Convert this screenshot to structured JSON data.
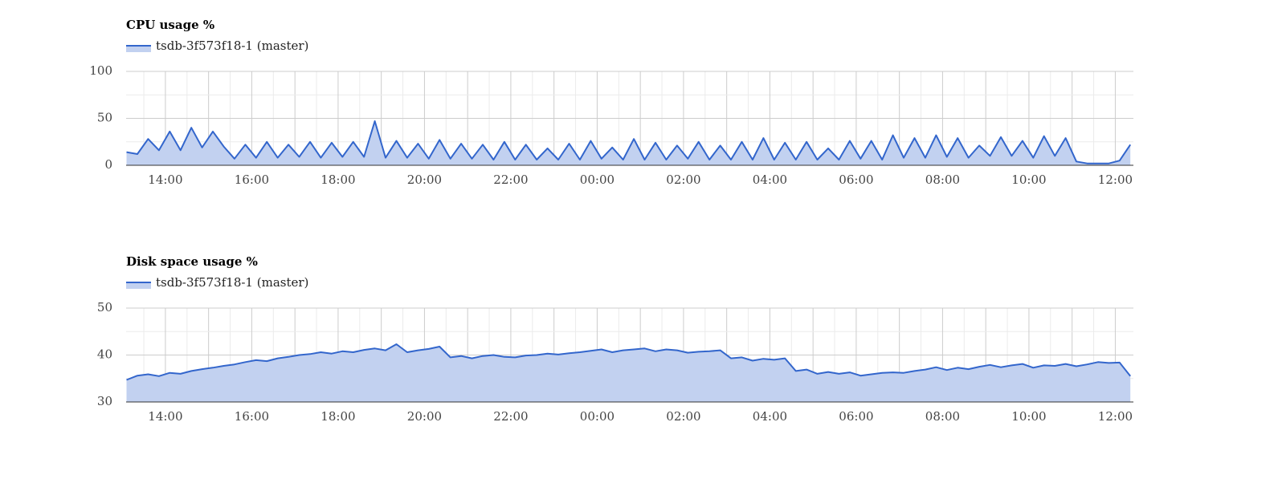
{
  "chart_data": [
    {
      "type": "area",
      "title": "CPU usage %",
      "x": [
        13.1,
        13.35,
        13.6,
        13.85,
        14.1,
        14.35,
        14.6,
        14.85,
        15.1,
        15.35,
        15.6,
        15.85,
        16.1,
        16.35,
        16.6,
        16.85,
        17.1,
        17.35,
        17.6,
        17.85,
        18.1,
        18.35,
        18.6,
        18.85,
        19.1,
        19.35,
        19.6,
        19.85,
        20.1,
        20.35,
        20.6,
        20.85,
        21.1,
        21.35,
        21.6,
        21.85,
        22.1,
        22.35,
        22.6,
        22.85,
        23.1,
        23.35,
        23.6,
        23.85,
        24.1,
        24.35,
        24.6,
        24.85,
        25.1,
        25.35,
        25.6,
        25.85,
        26.1,
        26.35,
        26.6,
        26.85,
        27.1,
        27.35,
        27.6,
        27.85,
        28.1,
        28.35,
        28.6,
        28.85,
        29.1,
        29.35,
        29.6,
        29.85,
        30.1,
        30.35,
        30.6,
        30.85,
        31.1,
        31.35,
        31.6,
        31.85,
        32.1,
        32.35,
        32.6,
        32.85,
        33.1,
        33.35,
        33.6,
        33.85,
        34.1,
        34.35,
        34.6,
        34.85,
        35.1,
        35.35,
        35.6,
        35.85,
        36.1,
        36.35
      ],
      "series": [
        {
          "name": "tsdb-3f573f18-1 (master)",
          "color": "#3366cc",
          "fill": "#c2d1f0",
          "values": [
            14,
            12,
            28,
            16,
            36,
            16,
            40,
            19,
            36,
            20,
            7,
            22,
            8,
            25,
            8,
            22,
            9,
            25,
            8,
            24,
            9,
            25,
            9,
            47,
            8,
            26,
            8,
            23,
            7,
            27,
            7,
            23,
            7,
            22,
            6,
            25,
            6,
            22,
            6,
            18,
            6,
            23,
            6,
            26,
            7,
            19,
            6,
            28,
            6,
            24,
            6,
            21,
            7,
            25,
            6,
            21,
            6,
            25,
            6,
            29,
            6,
            24,
            6,
            25,
            6,
            18,
            6,
            26,
            7,
            26,
            6,
            32,
            8,
            29,
            8,
            32,
            9,
            29,
            8,
            21,
            10,
            30,
            10,
            26,
            8,
            31,
            10,
            29,
            4,
            2,
            2,
            2,
            5,
            22
          ]
        }
      ],
      "xlim": [
        13.09,
        36.42
      ],
      "xticks": [
        {
          "value": 14,
          "label": "14:00"
        },
        {
          "value": 16,
          "label": "16:00"
        },
        {
          "value": 18,
          "label": "18:00"
        },
        {
          "value": 20,
          "label": "20:00"
        },
        {
          "value": 22,
          "label": "22:00"
        },
        {
          "value": 24,
          "label": "00:00"
        },
        {
          "value": 26,
          "label": "02:00"
        },
        {
          "value": 28,
          "label": "04:00"
        },
        {
          "value": 30,
          "label": "06:00"
        },
        {
          "value": 32,
          "label": "08:00"
        },
        {
          "value": 34,
          "label": "10:00"
        },
        {
          "value": 36,
          "label": "12:00"
        }
      ],
      "ylim": [
        0,
        100
      ],
      "yticks": [
        0,
        50,
        100
      ],
      "grid": true
    },
    {
      "type": "area",
      "title": "Disk space usage %",
      "x": [
        13.1,
        13.35,
        13.6,
        13.85,
        14.1,
        14.35,
        14.6,
        14.85,
        15.1,
        15.35,
        15.6,
        15.85,
        16.1,
        16.35,
        16.6,
        16.85,
        17.1,
        17.35,
        17.6,
        17.85,
        18.1,
        18.35,
        18.6,
        18.85,
        19.1,
        19.35,
        19.6,
        19.85,
        20.1,
        20.35,
        20.6,
        20.85,
        21.1,
        21.35,
        21.6,
        21.85,
        22.1,
        22.35,
        22.6,
        22.85,
        23.1,
        23.35,
        23.6,
        23.85,
        24.1,
        24.35,
        24.6,
        24.85,
        25.1,
        25.35,
        25.6,
        25.85,
        26.1,
        26.35,
        26.6,
        26.85,
        27.1,
        27.35,
        27.6,
        27.85,
        28.1,
        28.35,
        28.6,
        28.85,
        29.1,
        29.35,
        29.6,
        29.85,
        30.1,
        30.35,
        30.6,
        30.85,
        31.1,
        31.35,
        31.6,
        31.85,
        32.1,
        32.35,
        32.6,
        32.85,
        33.1,
        33.35,
        33.6,
        33.85,
        34.1,
        34.35,
        34.6,
        34.85,
        35.1,
        35.35,
        35.6,
        35.85,
        36.1,
        36.35
      ],
      "series": [
        {
          "name": "tsdb-3f573f18-1 (master)",
          "color": "#3366cc",
          "fill": "#c2d1f0",
          "values": [
            34.7,
            35.6,
            35.9,
            35.5,
            36.2,
            36.0,
            36.6,
            37.0,
            37.3,
            37.7,
            38.0,
            38.5,
            38.9,
            38.7,
            39.3,
            39.6,
            40.0,
            40.2,
            40.6,
            40.3,
            40.8,
            40.6,
            41.1,
            41.4,
            41.0,
            42.3,
            40.6,
            41.0,
            41.3,
            41.8,
            39.5,
            39.8,
            39.3,
            39.8,
            40.0,
            39.6,
            39.5,
            39.9,
            40.0,
            40.3,
            40.1,
            40.4,
            40.6,
            40.9,
            41.2,
            40.6,
            41.0,
            41.2,
            41.4,
            40.8,
            41.2,
            41.0,
            40.5,
            40.7,
            40.8,
            41.0,
            39.3,
            39.5,
            38.8,
            39.2,
            39.0,
            39.3,
            36.6,
            36.9,
            36.0,
            36.4,
            36.0,
            36.3,
            35.6,
            35.9,
            36.2,
            36.3,
            36.2,
            36.6,
            36.9,
            37.4,
            36.8,
            37.3,
            37.0,
            37.5,
            37.9,
            37.4,
            37.8,
            38.1,
            37.3,
            37.8,
            37.7,
            38.1,
            37.6,
            38.0,
            38.5,
            38.3,
            38.4,
            35.5
          ]
        }
      ],
      "xlim": [
        13.09,
        36.42
      ],
      "xticks": [
        {
          "value": 14,
          "label": "14:00"
        },
        {
          "value": 16,
          "label": "16:00"
        },
        {
          "value": 18,
          "label": "18:00"
        },
        {
          "value": 20,
          "label": "20:00"
        },
        {
          "value": 22,
          "label": "22:00"
        },
        {
          "value": 24,
          "label": "00:00"
        },
        {
          "value": 26,
          "label": "02:00"
        },
        {
          "value": 28,
          "label": "04:00"
        },
        {
          "value": 30,
          "label": "06:00"
        },
        {
          "value": 32,
          "label": "08:00"
        },
        {
          "value": 34,
          "label": "10:00"
        },
        {
          "value": 36,
          "label": "12:00"
        }
      ],
      "ylim": [
        30,
        50
      ],
      "yticks": [
        30,
        40,
        50
      ],
      "grid": true
    }
  ]
}
